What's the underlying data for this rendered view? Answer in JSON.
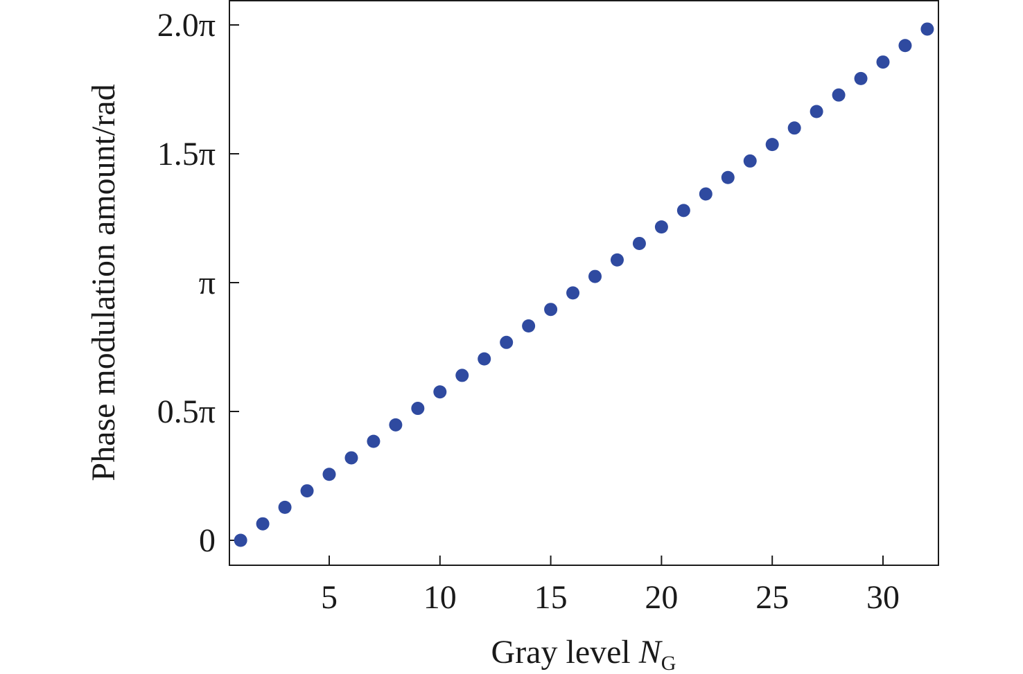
{
  "chart_data": {
    "type": "scatter",
    "title": "",
    "xlabel_main": "Gray level ",
    "xlabel_var": "N",
    "xlabel_sub": "G",
    "ylabel": "Phase modulation amount/rad",
    "xlim": [
      0.5,
      32.7
    ],
    "ylim": [
      -0.1,
      2.1
    ],
    "x_ticks": [
      {
        "value": 5,
        "label": "5"
      },
      {
        "value": 10,
        "label": "10"
      },
      {
        "value": 15,
        "label": "15"
      },
      {
        "value": 20,
        "label": "20"
      },
      {
        "value": 25,
        "label": "25"
      },
      {
        "value": 30,
        "label": "30"
      }
    ],
    "y_ticks": [
      {
        "value": 0,
        "label": "0"
      },
      {
        "value": 0.5,
        "label": "0.5π"
      },
      {
        "value": 1.0,
        "label": "π"
      },
      {
        "value": 1.5,
        "label": "1.5π"
      },
      {
        "value": 2.0,
        "label": "2.0π"
      }
    ],
    "y_unit": "π rad",
    "grid": false,
    "marker_color": "#2f4aa0",
    "series": [
      {
        "x": [
          1,
          2,
          3,
          4,
          5,
          6,
          7,
          8,
          9,
          10,
          11,
          12,
          13,
          14,
          15,
          16,
          17,
          18,
          19,
          20,
          21,
          22,
          23,
          24,
          25,
          26,
          27,
          28,
          29,
          30,
          31,
          32
        ],
        "y": [
          0.0,
          0.064,
          0.128,
          0.192,
          0.256,
          0.32,
          0.384,
          0.448,
          0.512,
          0.576,
          0.64,
          0.704,
          0.768,
          0.832,
          0.896,
          0.96,
          1.024,
          1.088,
          1.152,
          1.216,
          1.28,
          1.344,
          1.408,
          1.472,
          1.536,
          1.6,
          1.664,
          1.728,
          1.792,
          1.856,
          1.92,
          1.984
        ]
      }
    ]
  }
}
